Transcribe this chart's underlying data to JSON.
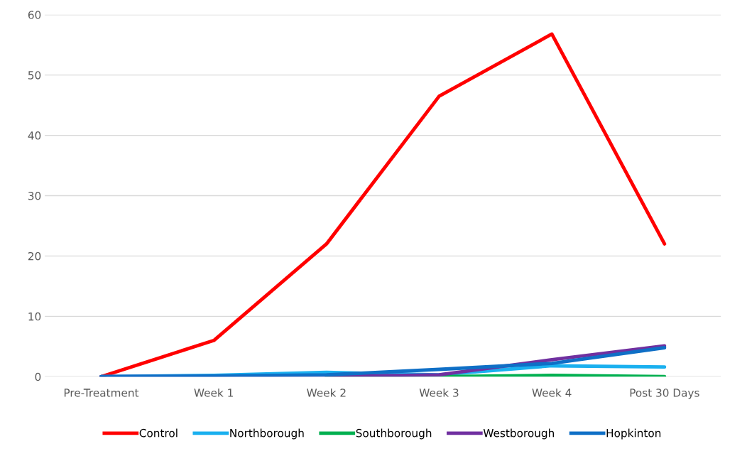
{
  "chart_data": {
    "type": "line",
    "categories": [
      "Pre-Treatment",
      "Week 1",
      "Week 2",
      "Week 3",
      "Week 4",
      "Post 30 Days"
    ],
    "series": [
      {
        "name": "Control",
        "color": "#ff0000",
        "values": [
          0,
          6,
          22,
          46.5,
          56.8,
          22
        ]
      },
      {
        "name": "Northborough",
        "color": "#1ab0ef",
        "values": [
          0,
          0.2,
          0.7,
          0.3,
          1.8,
          1.6
        ]
      },
      {
        "name": "Southborough",
        "color": "#00b050",
        "values": [
          null,
          null,
          0,
          0,
          0.2,
          0
        ]
      },
      {
        "name": "Westborough",
        "color": "#7030a0",
        "values": [
          0,
          0,
          0,
          0.3,
          2.8,
          5.1
        ]
      },
      {
        "name": "Hopkinton",
        "color": "#0f6fc6",
        "values": [
          0,
          0.1,
          0.3,
          1.2,
          2.2,
          4.8
        ]
      }
    ],
    "ylim": [
      0,
      60
    ],
    "yticks": [
      0,
      10,
      20,
      30,
      40,
      50,
      60
    ],
    "grid": "y",
    "legend": "bottom",
    "marker": "none",
    "line_style": "solid"
  }
}
